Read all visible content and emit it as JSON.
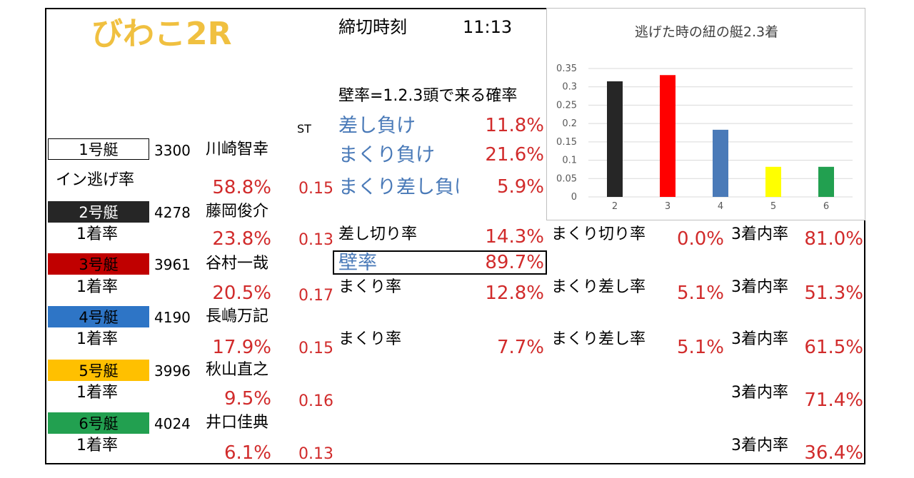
{
  "header": {
    "venue": "びわこ2R",
    "deadline_label": "締切時刻",
    "deadline_time": "11:13"
  },
  "st_label": "ST",
  "boats": [
    {
      "boat": "1号艇",
      "id": "3300",
      "name": "川崎智幸",
      "rate_label": "イン逃げ率",
      "rate": "58.8%",
      "st": "0.15",
      "color": "#ffffff",
      "text_color": "#000000"
    },
    {
      "boat": "2号艇",
      "id": "4278",
      "name": "藤岡俊介",
      "rate_label": "1着率",
      "rate": "23.8%",
      "st": "0.13",
      "color": "#262626",
      "text_color": "#ffffff"
    },
    {
      "boat": "3号艇",
      "id": "3961",
      "name": "谷村一哉",
      "rate_label": "1着率",
      "rate": "20.5%",
      "st": "0.17",
      "color": "#c00000",
      "text_color": "#000000"
    },
    {
      "boat": "4号艇",
      "id": "4190",
      "name": "長嶋万記",
      "rate_label": "1着率",
      "rate": "17.9%",
      "st": "0.15",
      "color": "#2e75c6",
      "text_color": "#000000"
    },
    {
      "boat": "5号艇",
      "id": "3996",
      "name": "秋山直之",
      "rate_label": "1着率",
      "rate": "9.5%",
      "st": "0.16",
      "color": "#ffc000",
      "text_color": "#000000"
    },
    {
      "boat": "6号艇",
      "id": "4024",
      "name": "井口佳典",
      "rate_label": "1着率",
      "rate": "6.1%",
      "st": "0.13",
      "color": "#22a050",
      "text_color": "#000000"
    }
  ],
  "wall": {
    "title": "壁率=1.2.3頭で来る確率",
    "items": [
      {
        "label": "差し負け",
        "value": "11.8%"
      },
      {
        "label": "まくり負け",
        "value": "21.6%"
      },
      {
        "label": "まくり差し負け",
        "value": "5.9%"
      }
    ]
  },
  "stats": {
    "boat2": {
      "sashikiri_label": "差し切り率",
      "sashikiri": "14.3%",
      "makurikiri_label": "まくり切り率",
      "makurikiri": "0.0%",
      "top3_label": "3着内率",
      "top3": "81.0%"
    },
    "wall_rate_label": "壁率",
    "wall_rate": "89.7%",
    "boat3": {
      "makuri_label": "まくり率",
      "makuri": "12.8%",
      "makurisashi_label": "まくり差し率",
      "makurisashi": "5.1%",
      "top3_label": "3着内率",
      "top3": "51.3%"
    },
    "boat4": {
      "makuri_label": "まくり率",
      "makuri": "7.7%",
      "makurisashi_label": "まくり差し率",
      "makurisashi": "5.1%",
      "top3_label": "3着内率",
      "top3": "61.5%"
    },
    "boat5": {
      "top3_label": "3着内率",
      "top3": "71.4%"
    },
    "boat6": {
      "top3_label": "3着内率",
      "top3": "36.4%"
    }
  },
  "chart_data": {
    "type": "bar",
    "title": "逃げた時の紐の艇2.3着",
    "categories": [
      "2",
      "3",
      "4",
      "5",
      "6"
    ],
    "values": [
      0.315,
      0.332,
      0.183,
      0.082,
      0.082
    ],
    "colors": [
      "#262626",
      "#ff0000",
      "#4a7ab8",
      "#ffff00",
      "#22a050"
    ],
    "ylim": [
      0,
      0.35
    ],
    "yticks": [
      "0",
      "0.05",
      "0.1",
      "0.15",
      "0.2",
      "0.25",
      "0.3",
      "0.35"
    ],
    "grid": true,
    "xlabel": "",
    "ylabel": ""
  }
}
